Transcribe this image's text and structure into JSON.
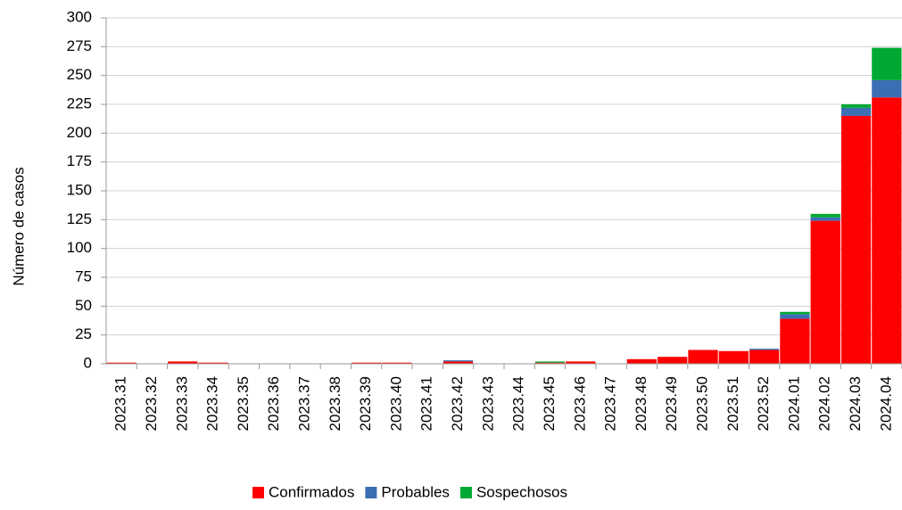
{
  "chart_data": {
    "type": "stacked_bar",
    "y_label": "Número de casos",
    "categories": [
      "2023.31",
      "2023.32",
      "2023.33",
      "2023.34",
      "2023.35",
      "2023.36",
      "2023.37",
      "2023.38",
      "2023.39",
      "2023.40",
      "2023.41",
      "2023.42",
      "2023.43",
      "2023.44",
      "2023.45",
      "2023.46",
      "2023.47",
      "2023.48",
      "2023.49",
      "2023.50",
      "2023.51",
      "2023.52",
      "2024.01",
      "2024.02",
      "2024.03",
      "2024.04"
    ],
    "series": [
      {
        "name": "Confirmados",
        "color": "#ff0000",
        "values": [
          1,
          0,
          2,
          1,
          0,
          0,
          0,
          0,
          1,
          1,
          0,
          2,
          0,
          0,
          1,
          2,
          0,
          4,
          6,
          12,
          11,
          12,
          39,
          124,
          215,
          231
        ]
      },
      {
        "name": "Probables",
        "color": "#3c6eb4",
        "values": [
          0,
          0,
          0,
          0,
          0,
          0,
          0,
          0,
          0,
          0,
          0,
          1,
          0,
          0,
          0,
          0,
          0,
          0,
          0,
          0,
          0,
          1,
          4,
          3,
          7,
          15
        ]
      },
      {
        "name": "Sospechosos",
        "color": "#00a933",
        "values": [
          0,
          0,
          0,
          0,
          0,
          0,
          0,
          0,
          0,
          0,
          0,
          0,
          0,
          0,
          1,
          0,
          0,
          0,
          0,
          0,
          0,
          0,
          2,
          3,
          3,
          28
        ]
      }
    ],
    "ylim": [
      0,
      300
    ],
    "yticks": [
      0,
      25,
      50,
      75,
      100,
      125,
      150,
      175,
      200,
      225,
      250,
      275,
      300
    ],
    "grid": true
  }
}
